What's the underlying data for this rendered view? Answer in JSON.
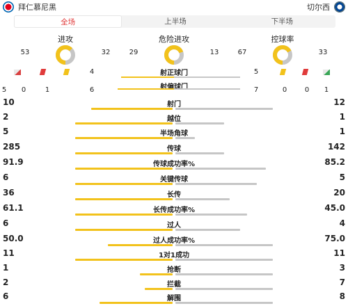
{
  "header": {
    "home_team": "拜仁慕尼黑",
    "away_team": "切尔西",
    "home_badge_icon": "bayern-badge-icon",
    "away_badge_icon": "chelsea-badge-icon"
  },
  "tabs": [
    {
      "label": "全场",
      "active": true
    },
    {
      "label": "上半场",
      "active": false
    },
    {
      "label": "下半场",
      "active": false
    }
  ],
  "donuts": [
    {
      "title": "进攻",
      "home": "53",
      "away": "32",
      "home_value": 53,
      "away_value": 32
    },
    {
      "title": "危险进攻",
      "home": "29",
      "away": "13",
      "home_value": 29,
      "away_value": 13
    },
    {
      "title": "控球率",
      "home": "67",
      "away": "33",
      "home_value": 67,
      "away_value": 33
    }
  ],
  "shots_on": {
    "label": "射正球门",
    "home": "4",
    "away": "5",
    "home_value": 4,
    "away_value": 5
  },
  "shots_off": {
    "label": "射偏球门",
    "home": "6",
    "away": "7",
    "home_value": 6,
    "away_value": 7
  },
  "home_discipline": {
    "corners": "5",
    "red_cards": "0",
    "yellow_cards": "1"
  },
  "away_discipline": {
    "yellow_cards": "0",
    "red_cards": "0",
    "corners": "1"
  },
  "colors": {
    "home": "#f2c21b",
    "away": "#c6c6c6",
    "accent": "#e03b3b"
  },
  "stats": [
    {
      "label": "射门",
      "home": "10",
      "away": "12",
      "home_value": 10,
      "away_value": 12
    },
    {
      "label": "越位",
      "home": "2",
      "away": "1",
      "home_value": 2,
      "away_value": 1
    },
    {
      "label": "半场角球",
      "home": "5",
      "away": "1",
      "home_value": 5,
      "away_value": 1
    },
    {
      "label": "传球",
      "home": "285",
      "away": "142",
      "home_value": 285,
      "away_value": 142
    },
    {
      "label": "传球成功率%",
      "home": "91.9",
      "away": "85.2",
      "home_value": 91.9,
      "away_value": 85.2
    },
    {
      "label": "关键传球",
      "home": "6",
      "away": "5",
      "home_value": 6,
      "away_value": 5
    },
    {
      "label": "长传",
      "home": "36",
      "away": "20",
      "home_value": 36,
      "away_value": 20
    },
    {
      "label": "长传成功率%",
      "home": "61.1",
      "away": "45.0",
      "home_value": 61.1,
      "away_value": 45.0
    },
    {
      "label": "过人",
      "home": "6",
      "away": "4",
      "home_value": 6,
      "away_value": 4
    },
    {
      "label": "过人成功率%",
      "home": "50.0",
      "away": "75.0",
      "home_value": 50.0,
      "away_value": 75.0
    },
    {
      "label": "1对1成功",
      "home": "11",
      "away": "11",
      "home_value": 11,
      "away_value": 11
    },
    {
      "label": "抢断",
      "home": "1",
      "away": "3",
      "home_value": 1,
      "away_value": 3
    },
    {
      "label": "拦截",
      "home": "2",
      "away": "7",
      "home_value": 2,
      "away_value": 7
    },
    {
      "label": "解围",
      "home": "6",
      "away": "8",
      "home_value": 6,
      "away_value": 8
    }
  ]
}
